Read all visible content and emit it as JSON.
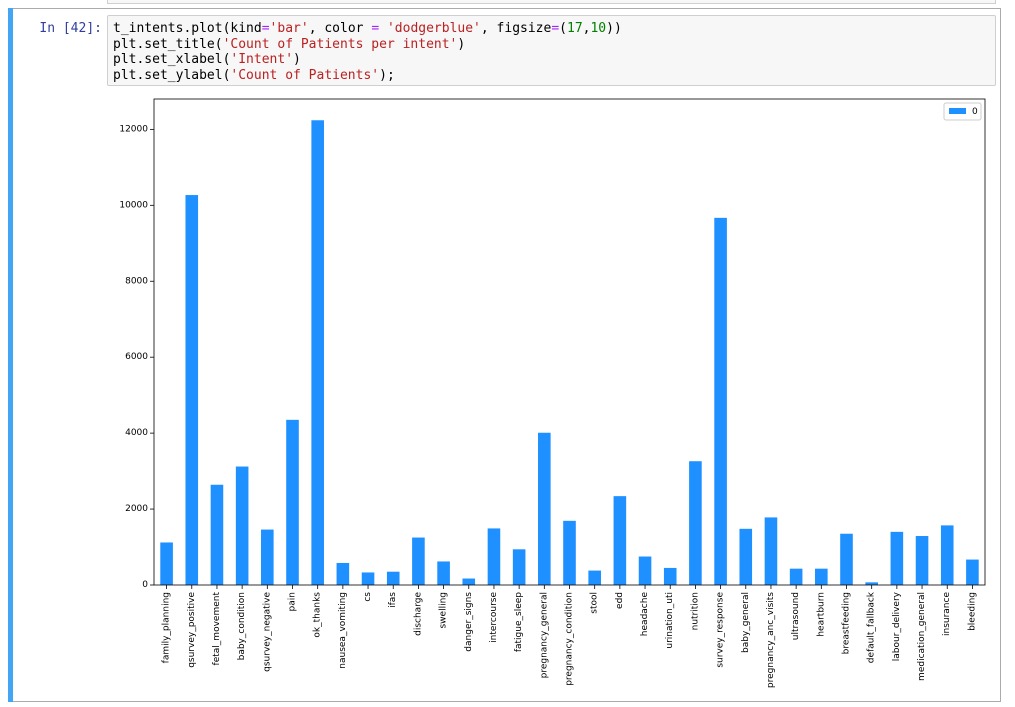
{
  "notebook": {
    "prompt": "In [42]:",
    "code_lines": [
      [
        {
          "t": "t_intents.plot(kind",
          "c": ""
        },
        {
          "t": "=",
          "c": "op"
        },
        {
          "t": "'bar'",
          "c": "str"
        },
        {
          "t": ", color ",
          "c": ""
        },
        {
          "t": "=",
          "c": "op"
        },
        {
          "t": " ",
          "c": ""
        },
        {
          "t": "'dodgerblue'",
          "c": "str"
        },
        {
          "t": ", figsize",
          "c": ""
        },
        {
          "t": "=",
          "c": "op"
        },
        {
          "t": "(",
          "c": ""
        },
        {
          "t": "17",
          "c": "num"
        },
        {
          "t": ",",
          "c": ""
        },
        {
          "t": "10",
          "c": "num"
        },
        {
          "t": "))",
          "c": ""
        }
      ],
      [
        {
          "t": "plt.set_title(",
          "c": ""
        },
        {
          "t": "'Count of Patients per intent'",
          "c": "str"
        },
        {
          "t": ")",
          "c": ""
        }
      ],
      [
        {
          "t": "plt.set_xlabel(",
          "c": ""
        },
        {
          "t": "'Intent'",
          "c": "str"
        },
        {
          "t": ")",
          "c": ""
        }
      ],
      [
        {
          "t": "plt.set_ylabel(",
          "c": ""
        },
        {
          "t": "'Count of Patients'",
          "c": "str"
        },
        {
          "t": ");",
          "c": ""
        }
      ]
    ]
  },
  "colors": {
    "bar": "#1e90ff",
    "cell_accent": "#42a5f5",
    "prompt": "#303f9f"
  },
  "chart_data": {
    "type": "bar",
    "title": "",
    "xlabel": "",
    "ylabel": "",
    "ylim": [
      0,
      12800
    ],
    "yticks": [
      0,
      2000,
      4000,
      6000,
      8000,
      10000,
      12000
    ],
    "grid": false,
    "legend": {
      "position": "top-right",
      "entries": [
        "0"
      ]
    },
    "categories": [
      "family_planning",
      "qsurvey_positive",
      "fetal_movement",
      "baby_condition",
      "qsurvey_negative",
      "pain",
      "ok_thanks",
      "nausea_vomiting",
      "cs",
      "ifas",
      "discharge",
      "swelling",
      "danger_signs",
      "intercourse",
      "fatigue_sleep",
      "pregnancy_general",
      "pregnancy_condition",
      "stool",
      "edd",
      "headache",
      "urination_uti",
      "nutrition",
      "survey_response",
      "baby_general",
      "pregnancy_anc_visits",
      "ultrasound",
      "heartburn",
      "breastfeeding",
      "default_fallback",
      "labour_delivery",
      "medication_general",
      "insurance",
      "bleeding"
    ],
    "series": [
      {
        "name": "0",
        "values": [
          1120,
          10270,
          2640,
          3120,
          1460,
          4350,
          12240,
          580,
          330,
          350,
          1250,
          620,
          170,
          1490,
          940,
          4010,
          1690,
          380,
          2340,
          750,
          450,
          3260,
          9670,
          1480,
          1780,
          430,
          430,
          1350,
          70,
          1400,
          1290,
          1570,
          670
        ]
      }
    ]
  }
}
